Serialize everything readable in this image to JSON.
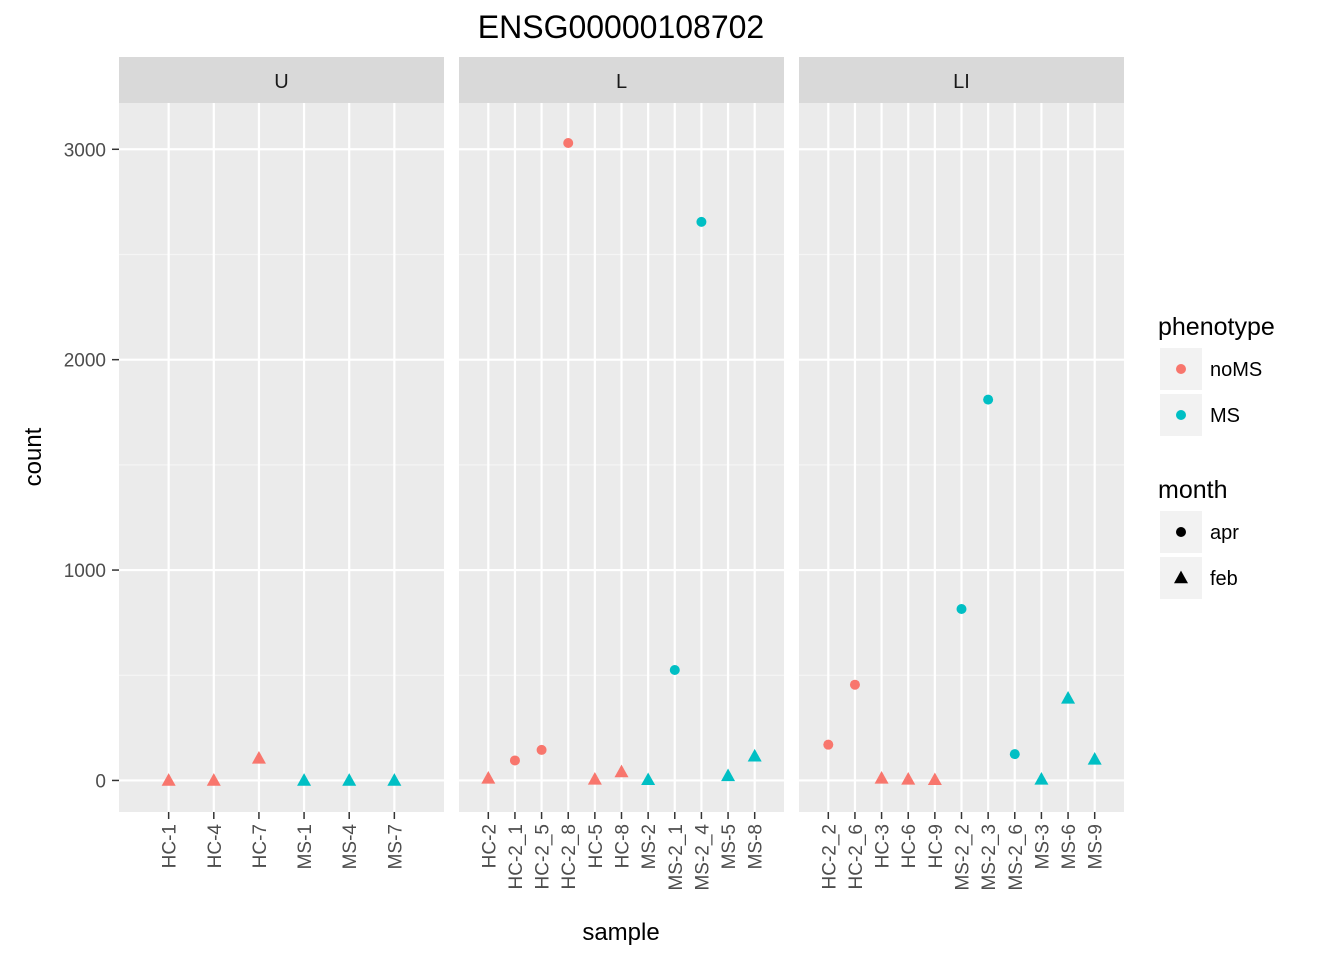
{
  "chart_data": {
    "type": "scatter",
    "title": "ENSG00000108702",
    "xlabel": "sample",
    "ylabel": "count",
    "ylim": [
      -150,
      3220
    ],
    "y_ticks": [
      0,
      1000,
      2000,
      3000
    ],
    "grid": true,
    "legend_position": "right",
    "facets": [
      {
        "label": "U",
        "categories": [
          "HC-1",
          "HC-4",
          "HC-7",
          "MS-1",
          "MS-4",
          "MS-7"
        ],
        "points": [
          {
            "sample": "HC-1",
            "count": 0,
            "phenotype": "noMS",
            "month": "feb"
          },
          {
            "sample": "HC-4",
            "count": 0,
            "phenotype": "noMS",
            "month": "feb"
          },
          {
            "sample": "HC-7",
            "count": 105,
            "phenotype": "noMS",
            "month": "feb"
          },
          {
            "sample": "MS-1",
            "count": 0,
            "phenotype": "MS",
            "month": "feb"
          },
          {
            "sample": "MS-4",
            "count": 0,
            "phenotype": "MS",
            "month": "feb"
          },
          {
            "sample": "MS-7",
            "count": 0,
            "phenotype": "MS",
            "month": "feb"
          }
        ]
      },
      {
        "label": "L",
        "categories": [
          "HC-2",
          "HC-2_1",
          "HC-2_5",
          "HC-2_8",
          "HC-5",
          "HC-8",
          "MS-2",
          "MS-2_1",
          "MS-2_4",
          "MS-5",
          "MS-8"
        ],
        "points": [
          {
            "sample": "HC-2",
            "count": 10,
            "phenotype": "noMS",
            "month": "feb"
          },
          {
            "sample": "HC-2_1",
            "count": 95,
            "phenotype": "noMS",
            "month": "apr"
          },
          {
            "sample": "HC-2_5",
            "count": 145,
            "phenotype": "noMS",
            "month": "apr"
          },
          {
            "sample": "HC-2_8",
            "count": 3030,
            "phenotype": "noMS",
            "month": "apr"
          },
          {
            "sample": "HC-5",
            "count": 5,
            "phenotype": "noMS",
            "month": "feb"
          },
          {
            "sample": "HC-8",
            "count": 40,
            "phenotype": "noMS",
            "month": "feb"
          },
          {
            "sample": "MS-2",
            "count": 3,
            "phenotype": "MS",
            "month": "feb"
          },
          {
            "sample": "MS-2_1",
            "count": 525,
            "phenotype": "MS",
            "month": "apr"
          },
          {
            "sample": "MS-2_4",
            "count": 2655,
            "phenotype": "MS",
            "month": "apr"
          },
          {
            "sample": "MS-5",
            "count": 22,
            "phenotype": "MS",
            "month": "feb"
          },
          {
            "sample": "MS-8",
            "count": 115,
            "phenotype": "MS",
            "month": "feb"
          }
        ]
      },
      {
        "label": "LI",
        "categories": [
          "HC-2_2",
          "HC-2_6",
          "HC-3",
          "HC-6",
          "HC-9",
          "MS-2_2",
          "MS-2_3",
          "MS-2_6",
          "MS-3",
          "MS-6",
          "MS-9"
        ],
        "points": [
          {
            "sample": "HC-2_2",
            "count": 170,
            "phenotype": "noMS",
            "month": "apr"
          },
          {
            "sample": "HC-2_6",
            "count": 455,
            "phenotype": "noMS",
            "month": "apr"
          },
          {
            "sample": "HC-3",
            "count": 10,
            "phenotype": "noMS",
            "month": "feb"
          },
          {
            "sample": "HC-6",
            "count": 5,
            "phenotype": "noMS",
            "month": "feb"
          },
          {
            "sample": "HC-9",
            "count": 3,
            "phenotype": "noMS",
            "month": "feb"
          },
          {
            "sample": "MS-2_2",
            "count": 815,
            "phenotype": "MS",
            "month": "apr"
          },
          {
            "sample": "MS-2_3",
            "count": 1810,
            "phenotype": "MS",
            "month": "apr"
          },
          {
            "sample": "MS-2_6",
            "count": 125,
            "phenotype": "MS",
            "month": "apr"
          },
          {
            "sample": "MS-3",
            "count": 5,
            "phenotype": "MS",
            "month": "feb"
          },
          {
            "sample": "MS-6",
            "count": 390,
            "phenotype": "MS",
            "month": "feb"
          },
          {
            "sample": "MS-9",
            "count": 100,
            "phenotype": "MS",
            "month": "feb"
          }
        ]
      }
    ],
    "legends": [
      {
        "title": "phenotype",
        "items": [
          {
            "label": "noMS",
            "color": "#F8766D",
            "shape": "circle"
          },
          {
            "label": "MS",
            "color": "#00BFC4",
            "shape": "circle"
          }
        ]
      },
      {
        "title": "month",
        "items": [
          {
            "label": "apr",
            "color": "#000000",
            "shape": "circle"
          },
          {
            "label": "feb",
            "color": "#000000",
            "shape": "triangle"
          }
        ]
      }
    ],
    "colors": {
      "noMS": "#F8766D",
      "MS": "#00BFC4"
    },
    "shapes": {
      "apr": "circle",
      "feb": "triangle"
    }
  }
}
